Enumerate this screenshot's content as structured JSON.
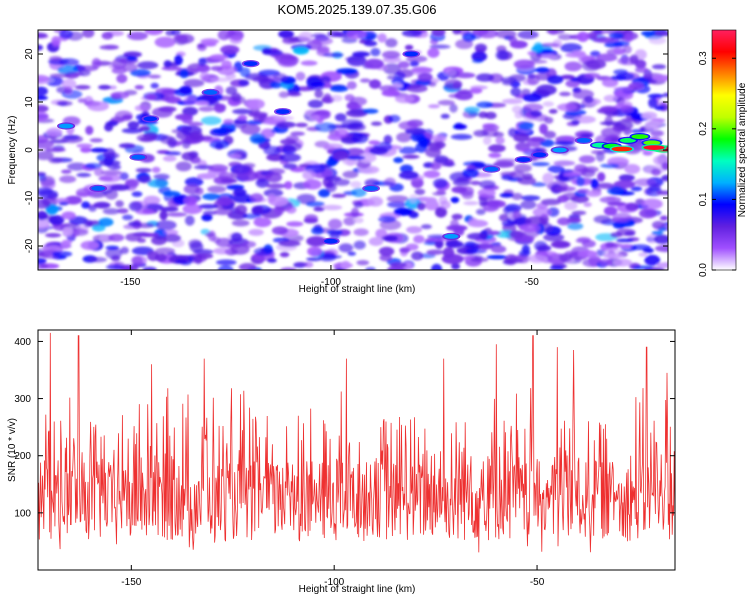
{
  "chart_data": [
    {
      "type": "heatmap",
      "title": "KOM5.2025.139.07.35.G06",
      "xlabel": "Height of straight line (km)",
      "ylabel": "Frequency (Hz)",
      "xlim": [
        -173,
        -16
      ],
      "ylim": [
        -25,
        25
      ],
      "xticks": [
        -150,
        -100,
        -50
      ],
      "yticks": [
        -20,
        -10,
        0,
        10,
        20
      ],
      "colorbar": {
        "label": "Normalized spectral amplitude",
        "range": [
          0.0,
          0.34
        ],
        "ticks": [
          0.0,
          0.1,
          0.2,
          0.3
        ],
        "colormap": [
          "#ffffff",
          "#a050ff",
          "#6020e0",
          "#0000ff",
          "#00b0ff",
          "#00ffc0",
          "#00ff00",
          "#c0ff00",
          "#ffff00",
          "#ff8000",
          "#ff0000",
          "#ff2060"
        ]
      },
      "background_level": 0.045,
      "features": [
        {
          "x": -33,
          "y": 1.0,
          "value": 0.16
        },
        {
          "x": -30,
          "y": 0.8,
          "value": 0.18
        },
        {
          "x": -26,
          "y": 2.0,
          "value": 0.17
        },
        {
          "x": -23,
          "y": 2.8,
          "value": 0.19
        },
        {
          "x": -20,
          "y": 1.5,
          "value": 0.2
        },
        {
          "x": -17,
          "y": 0.2,
          "value": 0.33
        },
        {
          "x": -19.5,
          "y": 0.5,
          "value": 0.32
        },
        {
          "x": -27.5,
          "y": 0.2,
          "value": 0.3
        },
        {
          "x": -43,
          "y": 0.0,
          "value": 0.12
        },
        {
          "x": -48,
          "y": -1.0,
          "value": 0.1
        },
        {
          "x": -37,
          "y": 2.0,
          "value": 0.11
        },
        {
          "x": -52,
          "y": -2.0,
          "value": 0.1
        },
        {
          "x": -166,
          "y": 5.0,
          "value": 0.12
        },
        {
          "x": -158,
          "y": -8.0,
          "value": 0.11
        },
        {
          "x": -148,
          "y": -1.5,
          "value": 0.11
        },
        {
          "x": -145,
          "y": 6.5,
          "value": 0.1
        },
        {
          "x": -130,
          "y": 12.0,
          "value": 0.11
        },
        {
          "x": -112,
          "y": 8.0,
          "value": 0.1
        },
        {
          "x": -90,
          "y": -8.0,
          "value": 0.11
        },
        {
          "x": -80,
          "y": 20.0,
          "value": 0.1
        },
        {
          "x": -70,
          "y": -18.0,
          "value": 0.12
        },
        {
          "x": -60,
          "y": -4.0,
          "value": 0.11
        },
        {
          "x": -120,
          "y": 18.0,
          "value": 0.1
        },
        {
          "x": -100,
          "y": -19.0,
          "value": 0.1
        }
      ]
    },
    {
      "type": "line",
      "xlabel": "Height of straight line (km)",
      "ylabel": "SNR (10 * v/v)",
      "xlim": [
        -173,
        -16
      ],
      "ylim": [
        0,
        420
      ],
      "xticks": [
        -150,
        -100,
        -50
      ],
      "yticks": [
        100,
        200,
        300,
        400
      ],
      "color": "#ee3030",
      "x_step_km": 0.16,
      "series_envelope": {
        "baseline_mean": 120,
        "typical_range": [
          20,
          320
        ],
        "peaks": [
          {
            "x": -170,
            "value": 415
          },
          {
            "x": -163,
            "value": 410
          },
          {
            "x": -51,
            "value": 410
          },
          {
            "x": -45,
            "value": 390
          },
          {
            "x": -41,
            "value": 385
          },
          {
            "x": -60,
            "value": 395
          },
          {
            "x": -145,
            "value": 360
          },
          {
            "x": -132,
            "value": 370
          },
          {
            "x": -97,
            "value": 370
          },
          {
            "x": -73,
            "value": 370
          },
          {
            "x": -23,
            "value": 390
          },
          {
            "x": -18,
            "value": 345
          }
        ]
      }
    }
  ]
}
